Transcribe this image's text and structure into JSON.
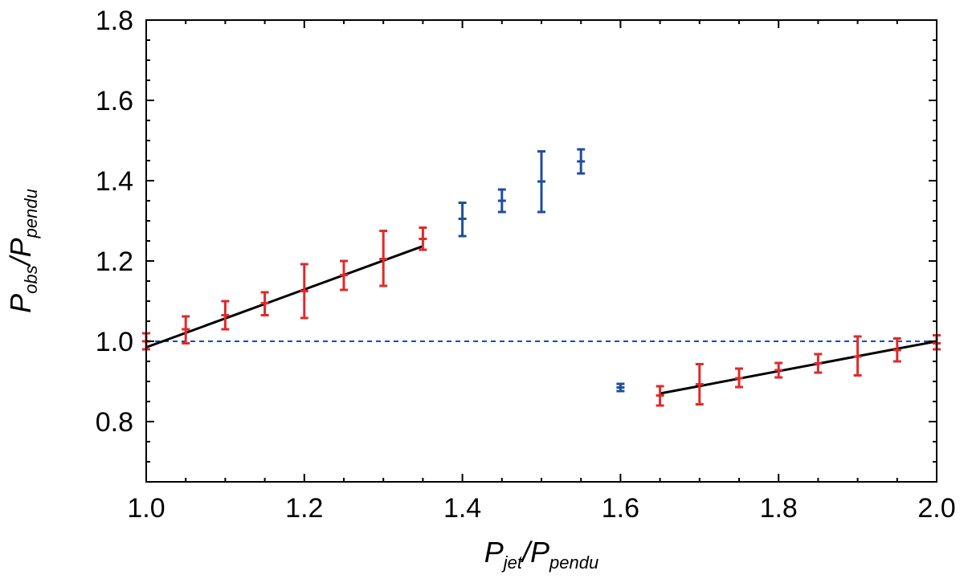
{
  "chart_data": {
    "type": "scatter",
    "xlabel": {
      "parts": [
        "P",
        "jet",
        "/P",
        "pendu"
      ]
    },
    "ylabel": {
      "parts": [
        "P",
        "obs",
        "/P",
        "pendu"
      ]
    },
    "xlim": [
      1.0,
      2.0
    ],
    "ylim": [
      0.65,
      1.8
    ],
    "xticks": [
      "1.0",
      "1.2",
      "1.4",
      "1.6",
      "1.8",
      "2.0"
    ],
    "yticks": [
      "0.8",
      "1.0",
      "1.2",
      "1.4",
      "1.6",
      "1.8"
    ],
    "xtick_values": [
      1.0,
      1.2,
      1.4,
      1.6,
      1.8,
      2.0
    ],
    "ytick_values": [
      0.8,
      1.0,
      1.2,
      1.4,
      1.6,
      1.8
    ],
    "reference_line": {
      "y": 1.0,
      "style": "dashed",
      "color": "#1f4e9c"
    },
    "series": [
      {
        "color": "#e02a2a",
        "points": [
          {
            "x": 1.0,
            "y": 1.0,
            "lo": 0.98,
            "hi": 1.02
          },
          {
            "x": 1.05,
            "y": 1.03,
            "lo": 0.995,
            "hi": 1.062
          },
          {
            "x": 1.1,
            "y": 1.065,
            "lo": 1.03,
            "hi": 1.1
          },
          {
            "x": 1.15,
            "y": 1.095,
            "lo": 1.065,
            "hi": 1.122
          },
          {
            "x": 1.2,
            "y": 1.125,
            "lo": 1.058,
            "hi": 1.192
          },
          {
            "x": 1.25,
            "y": 1.165,
            "lo": 1.128,
            "hi": 1.2
          },
          {
            "x": 1.3,
            "y": 1.205,
            "lo": 1.138,
            "hi": 1.275
          },
          {
            "x": 1.35,
            "y": 1.255,
            "lo": 1.228,
            "hi": 1.283
          },
          {
            "x": 1.65,
            "y": 0.865,
            "lo": 0.84,
            "hi": 0.888
          },
          {
            "x": 1.7,
            "y": 0.893,
            "lo": 0.843,
            "hi": 0.943
          },
          {
            "x": 1.75,
            "y": 0.908,
            "lo": 0.886,
            "hi": 0.932
          },
          {
            "x": 1.8,
            "y": 0.928,
            "lo": 0.91,
            "hi": 0.946
          },
          {
            "x": 1.85,
            "y": 0.945,
            "lo": 0.922,
            "hi": 0.968
          },
          {
            "x": 1.9,
            "y": 0.962,
            "lo": 0.915,
            "hi": 1.012
          },
          {
            "x": 1.95,
            "y": 0.978,
            "lo": 0.95,
            "hi": 1.007
          },
          {
            "x": 2.0,
            "y": 0.995,
            "lo": 0.98,
            "hi": 1.015
          }
        ]
      },
      {
        "color": "#1f4e9c",
        "points": [
          {
            "x": 1.4,
            "y": 1.305,
            "lo": 1.262,
            "hi": 1.345
          },
          {
            "x": 1.45,
            "y": 1.35,
            "lo": 1.322,
            "hi": 1.378
          },
          {
            "x": 1.5,
            "y": 1.398,
            "lo": 1.322,
            "hi": 1.473
          },
          {
            "x": 1.55,
            "y": 1.448,
            "lo": 1.418,
            "hi": 1.478
          },
          {
            "x": 1.6,
            "y": 0.885,
            "lo": 0.876,
            "hi": 0.894
          }
        ]
      }
    ],
    "fit_lines": [
      {
        "color": "#000000",
        "x": [
          1.0,
          1.35
        ],
        "y": [
          0.985,
          1.237
        ]
      },
      {
        "color": "#000000",
        "x": [
          1.65,
          2.0
        ],
        "y": [
          0.87,
          1.0
        ]
      }
    ]
  }
}
